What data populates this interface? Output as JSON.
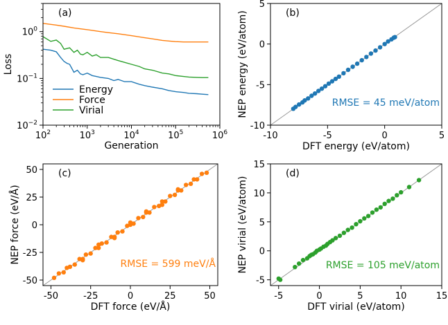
{
  "colors": {
    "energy": "#1f77b4",
    "force": "#ff7f0e",
    "virial": "#2ca02c",
    "diagonal": "#999999"
  },
  "chart_data": [
    {
      "type": "line",
      "panel": "(a)",
      "xlabel": "Generation",
      "ylabel": "Loss",
      "xscale": "log",
      "yscale": "log",
      "xlim": [
        100,
        1000000
      ],
      "ylim": [
        0.01,
        4
      ],
      "x_ticks": [
        {
          "v": 100,
          "b": "10",
          "e": "2"
        },
        {
          "v": 1000,
          "b": "10",
          "e": "3"
        },
        {
          "v": 10000,
          "b": "10",
          "e": "4"
        },
        {
          "v": 100000,
          "b": "10",
          "e": "5"
        },
        {
          "v": 1000000,
          "b": "10",
          "e": "6"
        }
      ],
      "y_ticks": [
        {
          "v": 0.01,
          "b": "10",
          "e": "−2"
        },
        {
          "v": 0.1,
          "b": "10",
          "e": "−1"
        },
        {
          "v": 1,
          "b": "10",
          "e": "0"
        }
      ],
      "legend_position": "lower-left",
      "series": [
        {
          "name": "Energy",
          "color_key": "energy",
          "x": [
            100,
            150,
            200,
            250,
            300,
            350,
            400,
            500,
            600,
            700,
            800,
            1000,
            1300,
            1600,
            2000,
            3000,
            4000,
            5000,
            7000,
            10000,
            15000,
            20000,
            30000,
            50000,
            70000,
            100000,
            150000,
            200000,
            300000,
            400000,
            550000
          ],
          "y": [
            0.42,
            0.4,
            0.37,
            0.28,
            0.23,
            0.21,
            0.2,
            0.135,
            0.15,
            0.125,
            0.12,
            0.13,
            0.115,
            0.11,
            0.105,
            0.1,
            0.09,
            0.095,
            0.085,
            0.085,
            0.075,
            0.07,
            0.065,
            0.06,
            0.055,
            0.052,
            0.05,
            0.048,
            0.047,
            0.046,
            0.045
          ]
        },
        {
          "name": "Force",
          "color_key": "force",
          "x": [
            100,
            200,
            300,
            500,
            1000,
            2000,
            3000,
            5000,
            10000,
            20000,
            30000,
            50000,
            70000,
            100000,
            150000,
            200000,
            300000,
            400000,
            550000
          ],
          "y": [
            1.5,
            1.38,
            1.3,
            1.2,
            1.1,
            1.0,
            0.95,
            0.9,
            0.82,
            0.74,
            0.7,
            0.65,
            0.63,
            0.61,
            0.6,
            0.6,
            0.6,
            0.6,
            0.6
          ]
        },
        {
          "name": "Virial",
          "color_key": "virial",
          "x": [
            100,
            150,
            200,
            250,
            300,
            400,
            500,
            600,
            700,
            800,
            1000,
            1300,
            1600,
            2000,
            3000,
            5000,
            7000,
            10000,
            15000,
            20000,
            30000,
            50000,
            70000,
            100000,
            150000,
            200000,
            300000,
            400000,
            550000
          ],
          "y": [
            0.78,
            0.62,
            0.66,
            0.56,
            0.42,
            0.45,
            0.36,
            0.4,
            0.33,
            0.32,
            0.36,
            0.3,
            0.32,
            0.28,
            0.28,
            0.24,
            0.22,
            0.2,
            0.18,
            0.16,
            0.15,
            0.13,
            0.125,
            0.115,
            0.11,
            0.107,
            0.105,
            0.104,
            0.104
          ]
        }
      ]
    },
    {
      "type": "scatter",
      "panel": "(b)",
      "xlabel": "DFT energy (eV/atom)",
      "ylabel": "NEP energy (eV/atom)",
      "xlim": [
        -10,
        5
      ],
      "ylim": [
        -10,
        5
      ],
      "x_ticks": [
        -10,
        -5,
        0,
        5
      ],
      "y_ticks": [
        -10,
        -5,
        0,
        5
      ],
      "annotation": "RMSE = 45 meV/atom",
      "color_key": "energy",
      "diagonal": true,
      "x": [
        -8.0,
        -7.8,
        -7.5,
        -7.2,
        -7.0,
        -6.7,
        -6.4,
        -6.1,
        -5.8,
        -5.5,
        -5.2,
        -4.9,
        -4.6,
        -4.3,
        -4.0,
        -3.6,
        -3.2,
        -2.8,
        -2.4,
        -2.0,
        -1.6,
        -1.2,
        -0.8,
        -0.4,
        0.0,
        0.3,
        0.6,
        0.8,
        0.9
      ],
      "y": [
        -7.98,
        -7.75,
        -7.45,
        -7.2,
        -6.95,
        -6.7,
        -6.38,
        -6.1,
        -5.78,
        -5.5,
        -5.2,
        -4.88,
        -4.6,
        -4.3,
        -4.02,
        -3.6,
        -3.18,
        -2.8,
        -2.42,
        -2.0,
        -1.6,
        -1.18,
        -0.8,
        -0.4,
        0.0,
        0.32,
        0.58,
        0.78,
        0.85
      ]
    },
    {
      "type": "scatter",
      "panel": "(c)",
      "xlabel": "DFT force (eV/Å)",
      "ylabel": "NEP force (eV/Å)",
      "xlim": [
        -55,
        55
      ],
      "ylim": [
        -55,
        55
      ],
      "x_ticks": [
        -50,
        -25,
        0,
        25,
        50
      ],
      "y_ticks": [
        -50,
        -25,
        0,
        25,
        50
      ],
      "annotation": "RMSE = 599 meV/Å",
      "color_key": "force",
      "diagonal": true,
      "x": [
        -48,
        -45,
        -42,
        -40,
        -38,
        -35,
        -32,
        -30,
        -28,
        -25,
        -22,
        -20,
        -18,
        -15,
        -12,
        -10,
        -8,
        -5,
        -2,
        0,
        2,
        5,
        8,
        10,
        12,
        15,
        18,
        20,
        22,
        25,
        28,
        30,
        32,
        35,
        38,
        40,
        42,
        45,
        48,
        -30,
        -10,
        10,
        30,
        -20,
        0,
        20
      ],
      "y": [
        -48,
        -44,
        -43,
        -39,
        -38,
        -36,
        -31,
        -31,
        -27,
        -26,
        -21,
        -21,
        -17,
        -16,
        -11,
        -11,
        -7,
        -6,
        -1,
        0,
        1,
        6,
        7,
        11,
        11,
        16,
        17,
        21,
        21,
        26,
        27,
        31,
        31,
        36,
        37,
        41,
        41,
        46,
        47,
        -32,
        -12,
        12,
        32,
        -18,
        2,
        18
      ]
    },
    {
      "type": "scatter",
      "panel": "(d)",
      "xlabel": "DFT virial (eV/atom)",
      "ylabel": "NEP virial (eV/atom)",
      "xlim": [
        -6,
        15
      ],
      "ylim": [
        -6,
        15
      ],
      "x_ticks": [
        -5,
        0,
        5,
        10,
        15
      ],
      "y_ticks": [
        -5,
        0,
        5,
        10,
        15
      ],
      "annotation": "RMSE = 105 meV/atom",
      "color_key": "virial",
      "diagonal": true,
      "x": [
        -5.0,
        -4.8,
        -3.0,
        -2.5,
        -2.0,
        -1.5,
        -1.2,
        -1.0,
        -0.8,
        -0.5,
        -0.3,
        0.0,
        0.2,
        0.5,
        0.8,
        1.0,
        1.3,
        1.6,
        2.0,
        2.5,
        3.0,
        3.5,
        4.0,
        4.5,
        5.0,
        5.5,
        6.0,
        6.5,
        7.0,
        7.5,
        8.0,
        8.5,
        9.0,
        9.5,
        10.0,
        11.0,
        12.2
      ],
      "y": [
        -4.8,
        -5.0,
        -2.8,
        -2.2,
        -1.6,
        -1.3,
        -0.9,
        -0.7,
        -0.6,
        -0.3,
        0.0,
        0.2,
        0.4,
        0.7,
        0.9,
        1.2,
        1.5,
        1.8,
        2.2,
        2.6,
        3.1,
        3.6,
        4.0,
        4.6,
        5.1,
        5.6,
        6.0,
        6.6,
        7.1,
        7.5,
        8.1,
        8.6,
        9.0,
        9.6,
        10.1,
        11.0,
        12.2
      ]
    }
  ]
}
